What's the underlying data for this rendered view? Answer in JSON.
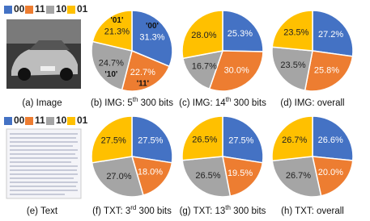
{
  "panels": [
    {
      "caption": [
        {
          "text": "(a) Image"
        }
      ]
    },
    {
      "caption": [
        {
          "text": "(e) Text"
        }
      ]
    }
  ],
  "chart_data": [
    {
      "type": "pie",
      "categories": [
        "00",
        "11",
        "10",
        "01"
      ],
      "colors": [
        "#4472c4",
        "#ed7d31",
        "#a5a5a5",
        "#ffc000"
      ],
      "values": [
        31.3,
        22.7,
        24.7,
        21.3
      ],
      "value_labels": [
        "31.3%",
        "22.7%",
        "24.7%",
        "21.3%"
      ],
      "slice_annotations": [
        "'00'",
        "'11'",
        "'10'",
        "'01'"
      ],
      "caption": [
        {
          "text": "(b) IMG: 5"
        },
        {
          "text": "th",
          "sup": true
        },
        {
          "text": " 300 bits"
        }
      ]
    },
    {
      "type": "pie",
      "categories": [
        "00",
        "11",
        "10",
        "01"
      ],
      "colors": [
        "#4472c4",
        "#ed7d31",
        "#a5a5a5",
        "#ffc000"
      ],
      "values": [
        25.3,
        30.0,
        16.7,
        28.0
      ],
      "value_labels": [
        "25.3%",
        "30.0%",
        "16.7%",
        "28.0%"
      ],
      "caption": [
        {
          "text": "(c) IMG: 14"
        },
        {
          "text": "th",
          "sup": true
        },
        {
          "text": " 300 bits"
        }
      ]
    },
    {
      "type": "pie",
      "categories": [
        "00",
        "11",
        "10",
        "01"
      ],
      "colors": [
        "#4472c4",
        "#ed7d31",
        "#a5a5a5",
        "#ffc000"
      ],
      "values": [
        27.2,
        25.8,
        23.5,
        23.5
      ],
      "value_labels": [
        "27.2%",
        "25.8%",
        "23.5%",
        "23.5%"
      ],
      "caption": [
        {
          "text": "(d) IMG: overall"
        }
      ]
    },
    {
      "type": "pie",
      "categories": [
        "00",
        "11",
        "10",
        "01"
      ],
      "colors": [
        "#4472c4",
        "#ed7d31",
        "#a5a5a5",
        "#ffc000"
      ],
      "values": [
        27.5,
        18.0,
        27.0,
        27.5
      ],
      "value_labels": [
        "27.5%",
        "18.0%",
        "27.0%",
        "27.5%"
      ],
      "caption": [
        {
          "text": "(f) TXT: 3"
        },
        {
          "text": "rd",
          "sup": true
        },
        {
          "text": " 300 bits"
        }
      ]
    },
    {
      "type": "pie",
      "categories": [
        "00",
        "11",
        "10",
        "01"
      ],
      "colors": [
        "#4472c4",
        "#ed7d31",
        "#a5a5a5",
        "#ffc000"
      ],
      "values": [
        27.5,
        19.5,
        26.5,
        26.5
      ],
      "value_labels": [
        "27.5%",
        "19.5%",
        "26.5%",
        "26.5%"
      ],
      "caption": [
        {
          "text": "(g) TXT: 13"
        },
        {
          "text": "th",
          "sup": true
        },
        {
          "text": " 300 bits"
        }
      ]
    },
    {
      "type": "pie",
      "categories": [
        "00",
        "11",
        "10",
        "01"
      ],
      "colors": [
        "#4472c4",
        "#ed7d31",
        "#a5a5a5",
        "#ffc000"
      ],
      "values": [
        26.6,
        20.0,
        26.7,
        26.7
      ],
      "value_labels": [
        "26.6%",
        "20.0%",
        "26.7%",
        "26.7%"
      ],
      "caption": [
        {
          "text": "(h) TXT: overall"
        }
      ]
    }
  ]
}
